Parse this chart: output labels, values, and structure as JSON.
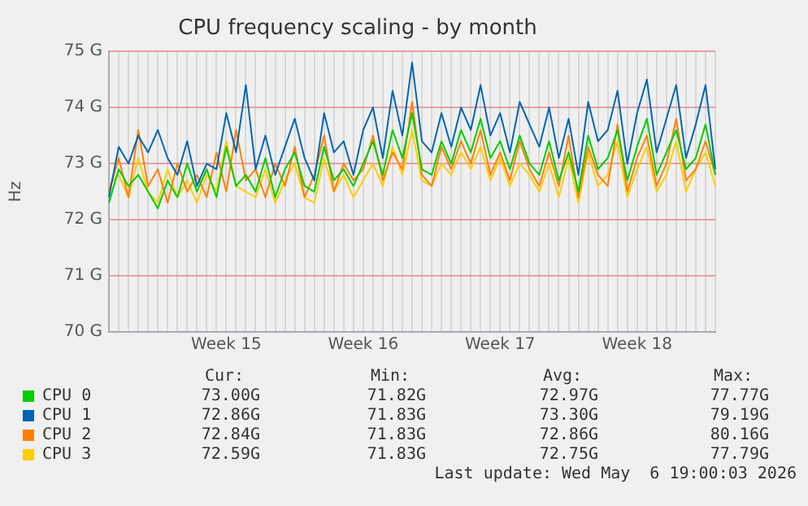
{
  "chart_data": {
    "type": "line",
    "title": "CPU frequency scaling - by month",
    "ylabel": "Hz",
    "categories": [
      null,
      null,
      null,
      null,
      null,
      null,
      null,
      null,
      null,
      null,
      null,
      null,
      "Week 15",
      null,
      null,
      null,
      null,
      null,
      null,
      null,
      null,
      null,
      null,
      null,
      null,
      null,
      "Week 16",
      null,
      null,
      null,
      null,
      null,
      null,
      null,
      null,
      null,
      null,
      null,
      null,
      null,
      "Week 17",
      null,
      null,
      null,
      null,
      null,
      null,
      null,
      null,
      null,
      null,
      null,
      null,
      null,
      "Week 18",
      null,
      null,
      null,
      null,
      null,
      null,
      null,
      null
    ],
    "ylim": [
      70,
      75
    ],
    "yticks": [
      {
        "value": 70,
        "label": "70 G"
      },
      {
        "value": 71,
        "label": "71 G"
      },
      {
        "value": 72,
        "label": "72 G"
      },
      {
        "value": 73,
        "label": "73 G"
      },
      {
        "value": 74,
        "label": "74 G"
      },
      {
        "value": 75,
        "label": "75 G"
      }
    ],
    "grid": true,
    "legend": "bottom",
    "marker": "none",
    "line_style": "solid",
    "series": [
      {
        "name": "CPU 0",
        "color": "#00cc00",
        "values": [
          72.3,
          72.9,
          72.6,
          72.8,
          72.5,
          72.2,
          72.7,
          72.4,
          73.0,
          72.5,
          72.9,
          72.4,
          73.3,
          72.6,
          72.8,
          72.5,
          73.1,
          72.4,
          72.9,
          73.2,
          72.6,
          72.5,
          73.3,
          72.7,
          72.9,
          72.6,
          73.0,
          73.4,
          72.8,
          73.6,
          73.1,
          73.9,
          72.9,
          72.8,
          73.4,
          73.0,
          73.6,
          73.2,
          73.8,
          73.1,
          73.4,
          72.9,
          73.5,
          73.0,
          72.8,
          73.4,
          72.7,
          73.2,
          72.5,
          73.5,
          72.9,
          73.1,
          73.6,
          72.7,
          73.3,
          73.8,
          72.8,
          73.2,
          73.6,
          72.9,
          73.1,
          73.7,
          72.8
        ]
      },
      {
        "name": "CPU 1",
        "color": "#0066b3",
        "values": [
          72.4,
          73.3,
          73.0,
          73.5,
          73.2,
          73.6,
          73.1,
          72.8,
          73.4,
          72.6,
          73.0,
          72.9,
          73.9,
          73.2,
          74.4,
          72.9,
          73.5,
          72.8,
          73.3,
          73.8,
          73.1,
          72.7,
          73.9,
          73.2,
          73.4,
          72.8,
          73.6,
          74.0,
          73.1,
          74.3,
          73.5,
          74.8,
          73.4,
          73.2,
          73.9,
          73.3,
          74.0,
          73.6,
          74.4,
          73.5,
          73.9,
          73.2,
          74.1,
          73.7,
          73.3,
          74.0,
          73.1,
          73.8,
          72.8,
          74.1,
          73.4,
          73.6,
          74.3,
          73.0,
          73.9,
          74.5,
          73.2,
          73.8,
          74.4,
          73.1,
          73.7,
          74.4,
          72.9
        ]
      },
      {
        "name": "CPU 2",
        "color": "#ff8000",
        "values": [
          72.5,
          73.1,
          72.4,
          73.6,
          72.6,
          72.9,
          72.3,
          73.0,
          72.5,
          72.8,
          72.4,
          73.2,
          72.5,
          73.6,
          72.7,
          72.9,
          72.4,
          73.0,
          72.6,
          73.3,
          72.4,
          72.8,
          73.5,
          72.5,
          73.0,
          72.7,
          72.9,
          73.5,
          72.7,
          73.2,
          72.9,
          74.1,
          72.8,
          72.6,
          73.3,
          72.9,
          73.4,
          73.0,
          73.6,
          72.8,
          73.2,
          72.7,
          73.4,
          72.9,
          72.6,
          73.2,
          72.6,
          73.5,
          72.4,
          73.3,
          72.8,
          72.6,
          73.7,
          72.5,
          73.1,
          73.5,
          72.6,
          73.0,
          73.8,
          72.7,
          72.9,
          73.4,
          72.8
        ]
      },
      {
        "name": "CPU 3",
        "color": "#ffcc00",
        "values": [
          72.6,
          72.8,
          72.4,
          73.1,
          72.5,
          72.3,
          72.9,
          72.4,
          72.7,
          72.3,
          72.8,
          72.5,
          73.4,
          72.6,
          72.5,
          72.4,
          72.9,
          72.3,
          72.7,
          73.0,
          72.4,
          72.3,
          73.1,
          72.5,
          72.8,
          72.4,
          72.7,
          73.0,
          72.6,
          73.3,
          72.8,
          73.6,
          72.7,
          72.6,
          73.0,
          72.8,
          73.2,
          72.9,
          73.3,
          72.7,
          73.1,
          72.6,
          73.0,
          72.8,
          72.5,
          73.0,
          72.4,
          73.1,
          72.3,
          73.2,
          72.6,
          72.8,
          73.4,
          72.4,
          72.9,
          73.3,
          72.5,
          72.8,
          73.4,
          72.5,
          72.9,
          73.2,
          72.6
        ]
      }
    ],
    "annotations": [
      "Cur:",
      "Min:",
      "Avg:",
      "Max:",
      "73.00G",
      "71.82G",
      "72.97G",
      "77.77G",
      "72.86G",
      "71.83G",
      "73.30G",
      "79.19G",
      "72.84G",
      "71.83G",
      "72.86G",
      "80.16G",
      "72.59G",
      "71.83G",
      "72.75G",
      "77.79G",
      "Last update: Wed May  6 19:00:03 2026"
    ]
  }
}
